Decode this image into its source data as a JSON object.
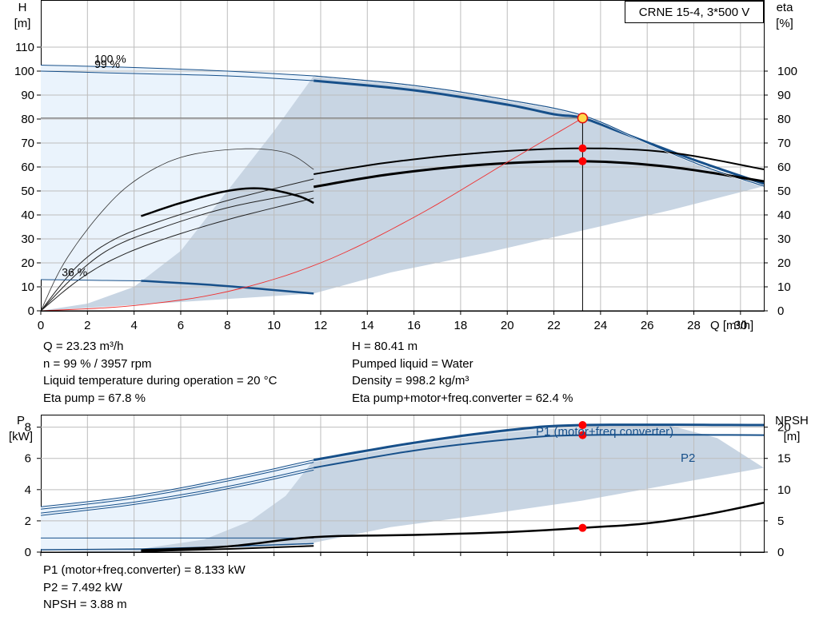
{
  "chart_data": [
    {
      "type": "line",
      "title": "CRNE 15-4, 3*500 V",
      "xlabel": "Q [m³/h]",
      "ylabel": "H\n[m]",
      "ylabel_right": "eta\n[%]",
      "xlim": [
        0,
        31
      ],
      "ylim": [
        0,
        110
      ],
      "ylim_right": [
        0,
        110
      ],
      "x_ticks": [
        0,
        2,
        4,
        6,
        8,
        10,
        12,
        14,
        16,
        18,
        20,
        22,
        24,
        26,
        28,
        30
      ],
      "y_ticks": [
        0,
        10,
        20,
        30,
        40,
        50,
        60,
        70,
        80,
        90,
        100,
        110
      ],
      "y_ticks_right": [
        0,
        10,
        20,
        30,
        40,
        50,
        60,
        70,
        80,
        90,
        100
      ],
      "grid": true,
      "annotations": [
        "100 %",
        "99 %",
        "36 %"
      ],
      "series": [
        {
          "name": "100 %",
          "color": "#17508a",
          "x": [
            0,
            4,
            8,
            11.7,
            16,
            20,
            23.23,
            26,
            28.5,
            31
          ],
          "y": [
            102.5,
            101.5,
            100,
            98,
            94,
            88,
            81.5,
            70,
            60,
            52
          ]
        },
        {
          "name": "99 %",
          "color": "#17508a",
          "x": [
            0,
            4,
            8,
            11.7,
            16,
            20,
            22,
            23.23,
            25,
            28,
            31
          ],
          "y": [
            100,
            99,
            98,
            96,
            92,
            86,
            82,
            80.41,
            74,
            63,
            53
          ]
        },
        {
          "name": "36 %",
          "color": "#17508a",
          "x": [
            0,
            4.3,
            7,
            9,
            11.7
          ],
          "y": [
            13,
            12.5,
            11,
            9.5,
            7.2
          ]
        },
        {
          "name": "",
          "color": "#000000",
          "x": [
            11.7,
            15,
            19,
            23.23,
            27,
            31
          ],
          "y": [
            57,
            62,
            66,
            67.8,
            66,
            59
          ]
        },
        {
          "name": "",
          "color": "#000000",
          "x": [
            11.7,
            15,
            19,
            23.23,
            27,
            31
          ],
          "y": [
            51.7,
            57,
            61,
            62.4,
            60,
            54
          ]
        },
        {
          "name": "",
          "color": "#ef3030",
          "x": [
            0,
            4,
            8,
            12,
            16,
            20,
            23.23
          ],
          "y": [
            0,
            2.2,
            8,
            20,
            39,
            62,
            80.41
          ]
        }
      ],
      "operating_point": {
        "x": 23.23,
        "y": 80.41,
        "eta_pump": 67.8,
        "eta_total": 62.4
      }
    },
    {
      "type": "line",
      "xlabel": "",
      "ylabel": "P\n[kW]",
      "ylabel_right": "NPSH\n[m]",
      "xlim": [
        0,
        31
      ],
      "ylim": [
        0,
        8.8
      ],
      "ylim_right": [
        0,
        22
      ],
      "y_ticks": [
        0,
        2,
        4,
        6,
        8
      ],
      "y_ticks_right": [
        0,
        5,
        10,
        15,
        20
      ],
      "grid": true,
      "series": [
        {
          "name": "P1 (motor+freq.converter)",
          "color": "#17508a",
          "x": [
            0,
            4,
            8,
            11.7,
            16,
            20,
            23.23,
            31
          ],
          "y": [
            2.9,
            3.6,
            4.7,
            5.9,
            7.0,
            7.8,
            8.133,
            8.133
          ]
        },
        {
          "name": "P2",
          "color": "#17508a",
          "x": [
            0,
            4,
            8,
            11.7,
            16,
            20,
            23.23,
            31
          ],
          "y": [
            2.5,
            3.2,
            4.2,
            5.4,
            6.5,
            7.2,
            7.492,
            7.492
          ]
        },
        {
          "name": "NPSH",
          "color": "#000000",
          "x": [
            4.3,
            8,
            11.7,
            16,
            20,
            23.23,
            26,
            28.5,
            31
          ],
          "y": [
            0.3,
            0.9,
            2.4,
            2.75,
            3.2,
            3.88,
            4.6,
            6,
            7.9
          ]
        }
      ],
      "operating_point": {
        "x": 23.23,
        "p1": 8.133,
        "p2": 7.492,
        "npsh": 3.88
      }
    }
  ],
  "info": {
    "q": "Q = 23.23 m³/h",
    "n": "n = 99 % / 3957 rpm",
    "temp": "Liquid temperature during operation = 20 °C",
    "eta_pump": "Eta pump = 67.8 %",
    "h": "H = 80.41 m",
    "liquid": "Pumped liquid = Water",
    "density": "Density = 998.2 kg/m³",
    "eta_total": "Eta pump+motor+freq.converter = 62.4 %",
    "p1": "P1 (motor+freq.converter) = 8.133 kW",
    "p2": "P2 = 7.492 kW",
    "npsh": "NPSH = 3.88 m"
  },
  "colors": {
    "blue": "#17508a",
    "shade": "#c8d5e3",
    "light": "#eaf3fc",
    "red": "#ff0000"
  }
}
